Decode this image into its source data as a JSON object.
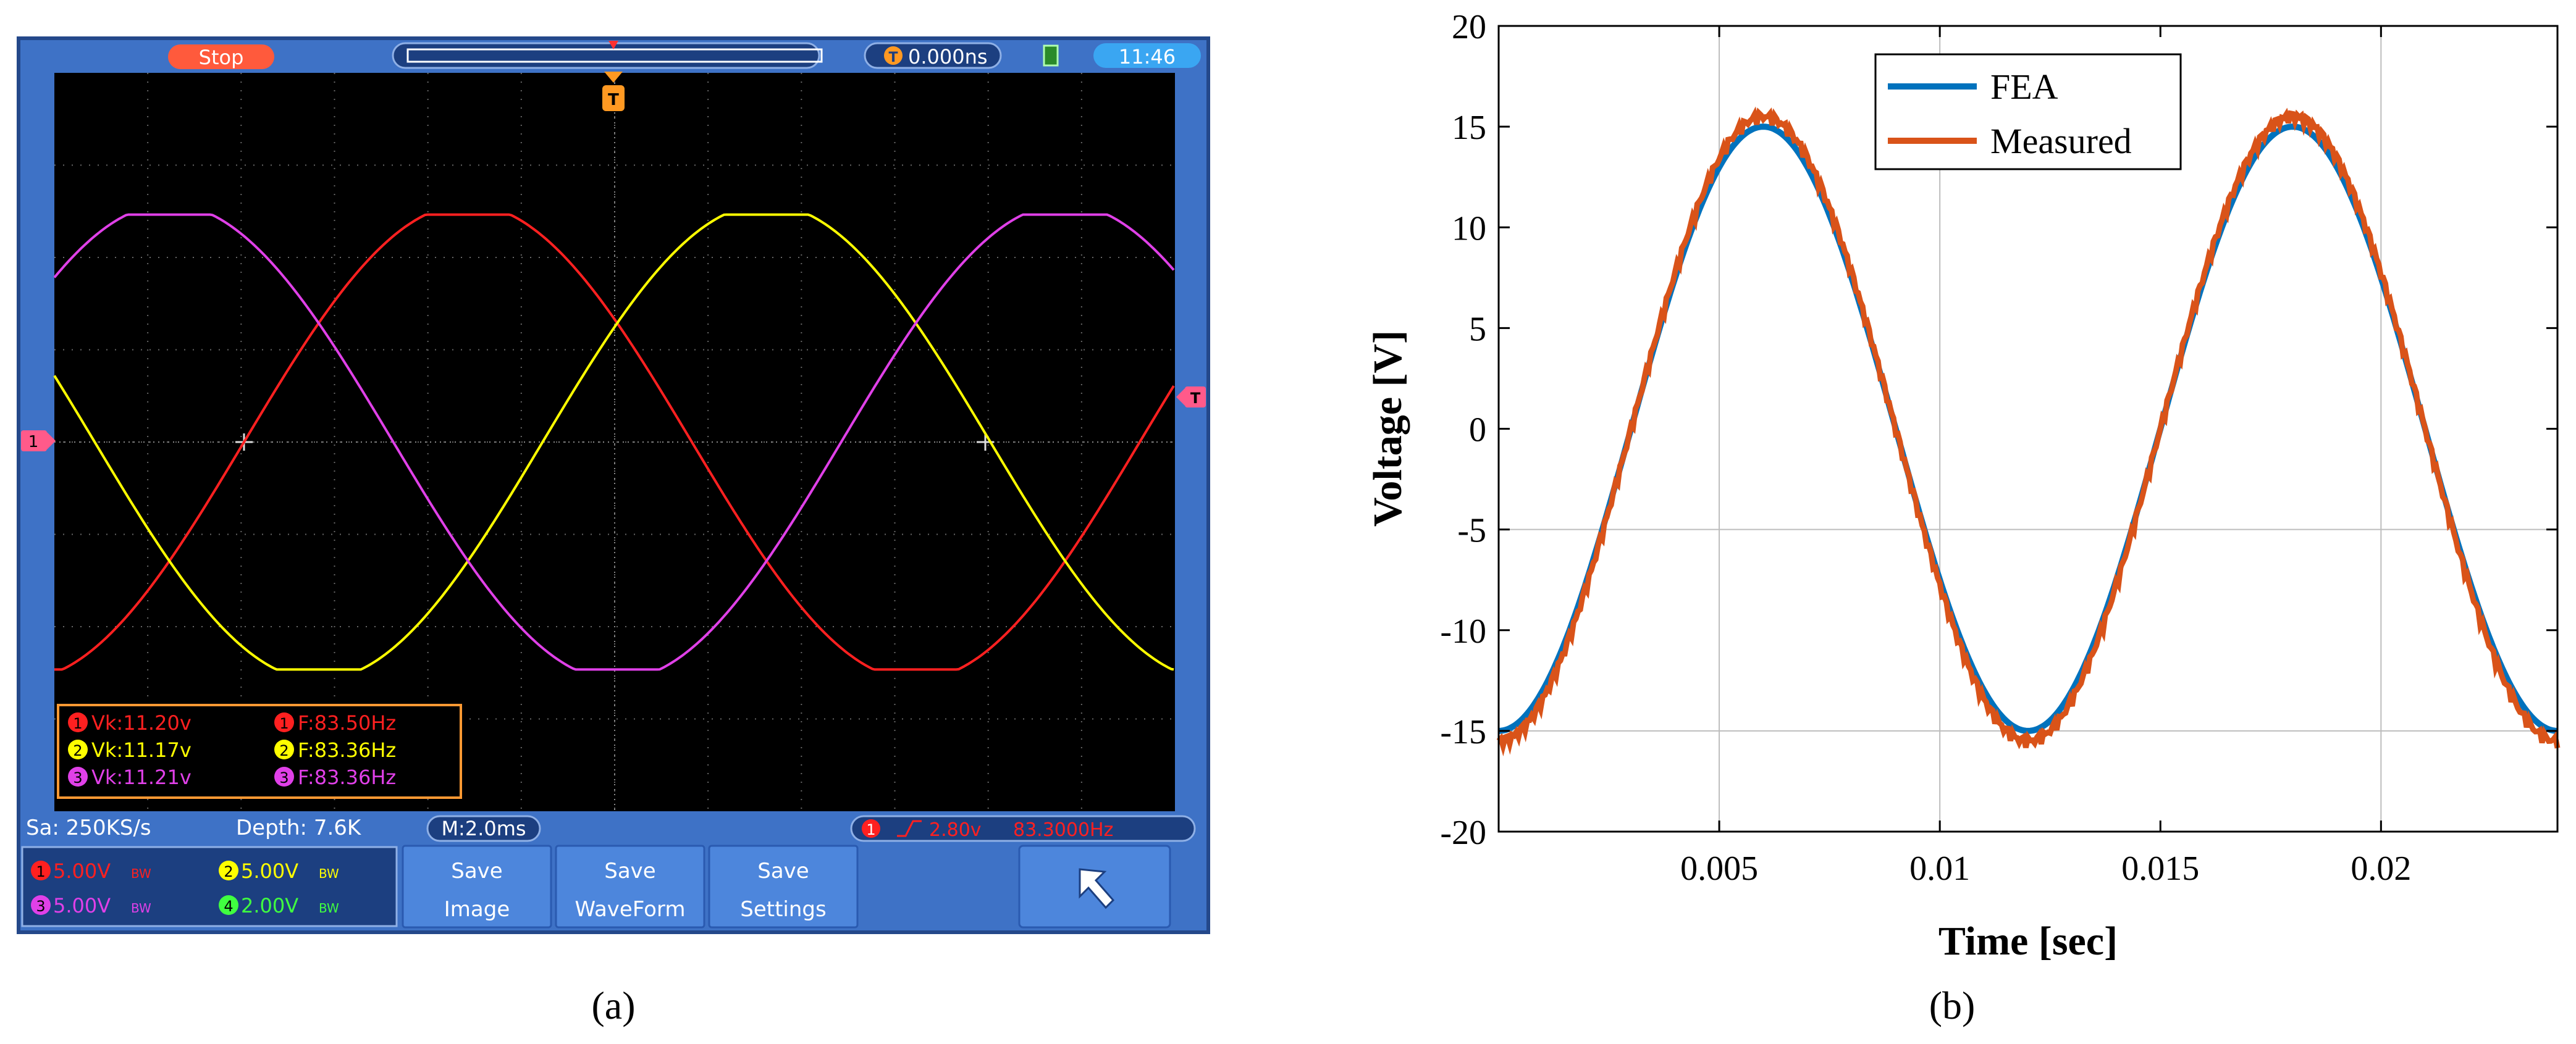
{
  "panel_a": {
    "caption": "(a)",
    "top_bar": {
      "run_state": "Stop",
      "trigger_time": "0.000ns",
      "clock": "11:46"
    },
    "measurements": [
      {
        "ch": "1",
        "vk": "Vk:11.20v",
        "f": "F:83.50Hz",
        "color": "#ff2020"
      },
      {
        "ch": "2",
        "vk": "Vk:11.17v",
        "f": "F:83.36Hz",
        "color": "#ffff00"
      },
      {
        "ch": "3",
        "vk": "Vk:11.21v",
        "f": "F:83.36Hz",
        "color": "#e040e8"
      }
    ],
    "status": {
      "sample_rate": "Sa: 250KS/s",
      "depth": "Depth: 7.6K",
      "timebase": "M:2.0ms",
      "trigger_ch": "1",
      "trigger_level": "2.80v",
      "trigger_freq": "83.3000Hz"
    },
    "channels": [
      {
        "ch": "1",
        "scale": "5.00V",
        "bw": "BW",
        "color": "#ff2020"
      },
      {
        "ch": "2",
        "scale": "5.00V",
        "bw": "BW",
        "color": "#ffff00"
      },
      {
        "ch": "3",
        "scale": "5.00V",
        "bw": "BW",
        "color": "#e040e8"
      },
      {
        "ch": "4",
        "scale": "2.00V",
        "bw": "BW",
        "color": "#40ff40"
      }
    ],
    "buttons": [
      {
        "line1": "Save",
        "line2": "Image"
      },
      {
        "line1": "Save",
        "line2": "WaveForm"
      },
      {
        "line1": "Save",
        "line2": "Settings"
      }
    ],
    "markers": {
      "ch1": "1",
      "trigger_left": "T",
      "trigger_top": "T"
    }
  },
  "panel_b": {
    "caption": "(b)",
    "icons": {
      "back": "return-arrow-icon"
    },
    "chart_data": {
      "type": "line",
      "xlabel": "Time [sec]",
      "ylabel": "Voltage [V]",
      "xlim": [
        0.0,
        0.024
      ],
      "ylim": [
        -20,
        20
      ],
      "xticks": [
        0.005,
        0.01,
        0.015,
        0.02
      ],
      "xtick_labels": [
        "0.005",
        "0.01",
        "0.015",
        "0.02"
      ],
      "yticks": [
        20,
        15,
        10,
        5,
        0,
        -5,
        -10,
        -15,
        -20
      ],
      "ytick_labels": [
        "20",
        "15",
        "10",
        "5",
        "0",
        "-5",
        "-10",
        "-15",
        "-20"
      ],
      "grid_x": [
        0.005,
        0.01,
        0.02
      ],
      "grid_y": [
        -5,
        -15
      ],
      "legend_position": "top-center",
      "series": [
        {
          "name": "FEA",
          "color": "#0072bd",
          "x": [
            0.0,
            0.001,
            0.002,
            0.003,
            0.004,
            0.005,
            0.006,
            0.007,
            0.008,
            0.009,
            0.01,
            0.011,
            0.012,
            0.013,
            0.014,
            0.015,
            0.016,
            0.017,
            0.018,
            0.019,
            0.02,
            0.021,
            0.022,
            0.023,
            0.024
          ],
          "y": [
            -15.0,
            -13.0,
            -7.5,
            0.0,
            7.5,
            13.0,
            15.0,
            13.0,
            7.5,
            0.0,
            -7.5,
            -13.0,
            -15.0,
            -13.0,
            -7.5,
            0.0,
            7.5,
            13.0,
            15.0,
            13.0,
            7.5,
            0.0,
            -7.5,
            -13.0,
            -15.0
          ]
        },
        {
          "name": "Measured",
          "color": "#d95319",
          "x": [
            0.0,
            0.001,
            0.002,
            0.003,
            0.004,
            0.005,
            0.006,
            0.007,
            0.008,
            0.009,
            0.01,
            0.011,
            0.012,
            0.013,
            0.014,
            0.015,
            0.016,
            0.017,
            0.018,
            0.019,
            0.02,
            0.021,
            0.022,
            0.023,
            0.024
          ],
          "y": [
            -15.5,
            -13.3,
            -7.7,
            0.0,
            7.7,
            13.3,
            15.5,
            13.3,
            7.7,
            0.0,
            -7.7,
            -13.3,
            -15.5,
            -13.3,
            -7.7,
            0.0,
            7.7,
            13.3,
            15.5,
            13.3,
            7.7,
            0.0,
            -7.7,
            -13.3,
            -15.5
          ]
        }
      ]
    }
  }
}
